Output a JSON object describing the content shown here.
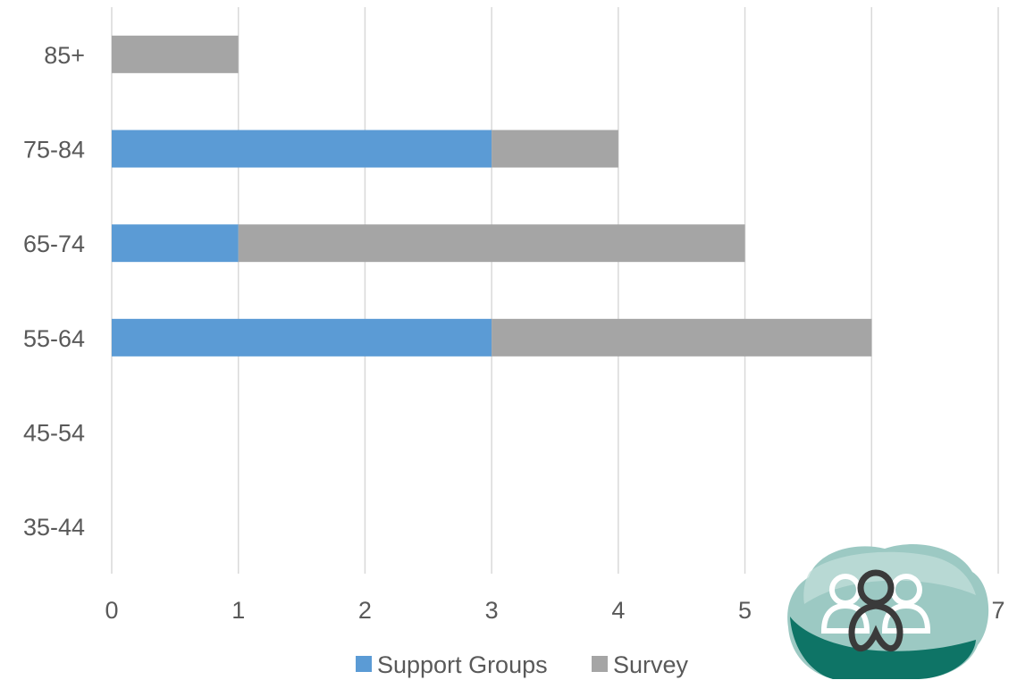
{
  "chart_data": {
    "type": "bar",
    "orientation": "horizontal",
    "stacked": true,
    "categories": [
      "35-44",
      "45-54",
      "55-64",
      "65-74",
      "75-84",
      "85+"
    ],
    "series": [
      {
        "name": "Support Groups",
        "values": [
          0,
          0,
          3,
          1,
          3,
          0
        ]
      },
      {
        "name": "Survey",
        "values": [
          0,
          0,
          3,
          4,
          1,
          1
        ]
      }
    ],
    "xlim": [
      0,
      7
    ],
    "x_ticks": [
      "0",
      "1",
      "2",
      "3",
      "4",
      "5",
      "6",
      "7"
    ],
    "grid": "vertical",
    "legend_position": "bottom",
    "colors": {
      "Support Groups": "#5b9bd5",
      "Survey": "#a5a5a5",
      "gridline": "#d9d9d9",
      "text": "#595959"
    }
  },
  "logo": {
    "icon": "support-group-people-logo-icon",
    "colors": {
      "light": "#9cc9c3",
      "mid": "#5fa79d",
      "dark": "#0e7466",
      "figure": "#3a3a3a"
    }
  }
}
